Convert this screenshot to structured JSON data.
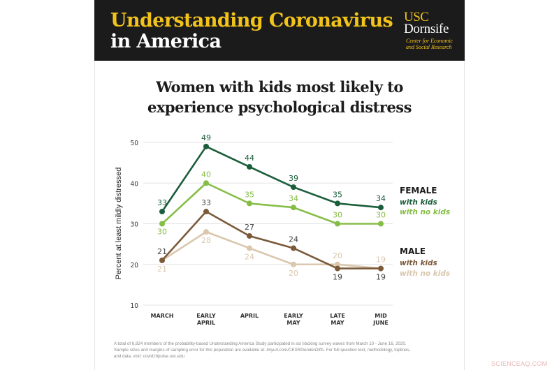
{
  "header": {
    "title_line1": "Understanding Coronavirus",
    "title_line2": "in America",
    "logo": {
      "usc": "USC",
      "dornsife": "Dornsife",
      "sub_line1": "Center for Economic",
      "sub_line2": "and Social Research"
    }
  },
  "chart_title_line1": "Women with kids most likely to",
  "chart_title_line2": "experience psychological distress",
  "legend": {
    "female_heading": "FEMALE",
    "female_with_kids": "with kids",
    "female_no_kids": "with no kids",
    "male_heading": "MALE",
    "male_with_kids": "with kids",
    "male_no_kids": "with no kids"
  },
  "footnote": {
    "line1": "A total of 6,824 members of the probability-based Understanding America Study participated in six tracking survey waves from March 10 - June 16, 2020.",
    "line2_prefix": "Sample sizes and margins of sampling error for this population are available at: ",
    "line2_link": "tinyurl.com/CESRGenderDiffs",
    "line2_suffix": ". For full question text, methodology, toplines,",
    "line3": "and data, visit: covid19pulse.usc.edu"
  },
  "watermark": "SCIENCEAQ.COM",
  "colors": {
    "header_bg": "#1c1b1b",
    "header_gold": "#f1c31b",
    "female_with_kids": "#1b5e3b",
    "female_no_kids": "#86bd47",
    "male_with_kids": "#7b5a3a",
    "male_no_kids": "#dac7ad"
  },
  "chart_data": {
    "type": "line",
    "title": "Women with kids most likely to experience psychological distress",
    "xlabel": "",
    "ylabel": "Percent at least mildly distressed",
    "ylim": [
      10,
      50
    ],
    "yticks": [
      10,
      20,
      30,
      40,
      50
    ],
    "grid": true,
    "legend_position": "right",
    "categories": [
      "MARCH",
      "EARLY APRIL",
      "APRIL",
      "EARLY MAY",
      "LATE MAY",
      "MID JUNE"
    ],
    "series": [
      {
        "name": "Female with kids",
        "group": "FEMALE",
        "values": [
          33,
          49,
          44,
          39,
          35,
          34
        ]
      },
      {
        "name": "Female with no kids",
        "group": "FEMALE",
        "values": [
          30,
          40,
          35,
          34,
          30,
          30
        ]
      },
      {
        "name": "Male with kids",
        "group": "MALE",
        "values": [
          21,
          33,
          27,
          24,
          19,
          19
        ]
      },
      {
        "name": "Male with no kids",
        "group": "MALE",
        "values": [
          21,
          28,
          24,
          20,
          20,
          19
        ]
      }
    ]
  }
}
